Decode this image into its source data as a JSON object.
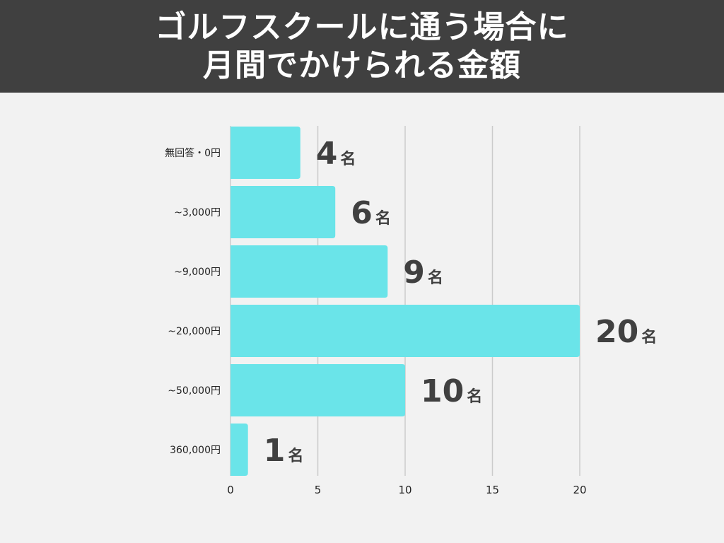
{
  "header": {
    "title_line1": "ゴルフスクールに通う場合に",
    "title_line2": "月間でかけられる金額"
  },
  "colors": {
    "header_bg": "#404040",
    "bar": "#6ae4e9",
    "grid": "#cccccc",
    "label_text": "#404040"
  },
  "chart_data": {
    "type": "bar",
    "orientation": "horizontal",
    "title": "ゴルフスクールに通う場合に月間でかけられる金額",
    "categories": [
      "無回答・0円",
      "~3,000円",
      "~9,000円",
      "~20,000円",
      "~50,000円",
      "360,000円"
    ],
    "values": [
      4,
      6,
      9,
      20,
      10,
      1
    ],
    "value_unit": "名",
    "xlim": [
      0,
      25
    ],
    "xticks": [
      0,
      5,
      10,
      15,
      20
    ],
    "grid": true,
    "xlabel": "",
    "ylabel": ""
  }
}
